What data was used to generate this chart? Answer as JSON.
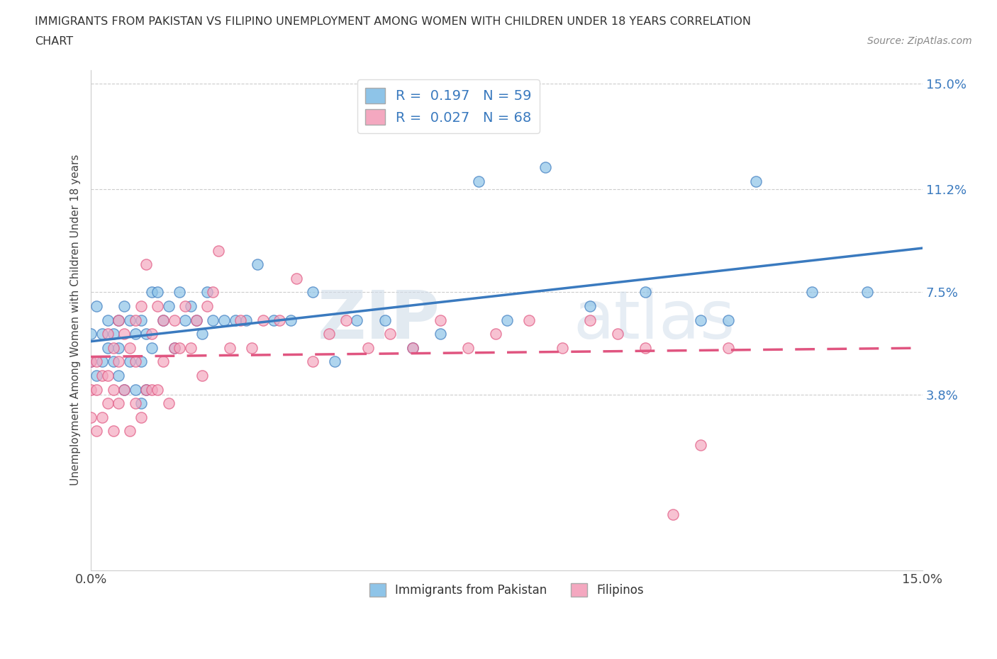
{
  "title_line1": "IMMIGRANTS FROM PAKISTAN VS FILIPINO UNEMPLOYMENT AMONG WOMEN WITH CHILDREN UNDER 18 YEARS CORRELATION",
  "title_line2": "CHART",
  "source_text": "Source: ZipAtlas.com",
  "ylabel": "Unemployment Among Women with Children Under 18 years",
  "xmin": 0.0,
  "xmax": 0.15,
  "ymin": -0.025,
  "ymax": 0.155,
  "yticks": [
    0.038,
    0.075,
    0.112,
    0.15
  ],
  "ytick_labels": [
    "3.8%",
    "7.5%",
    "11.2%",
    "15.0%"
  ],
  "xticks": [
    0.0,
    0.15
  ],
  "xtick_labels": [
    "0.0%",
    "15.0%"
  ],
  "r1": 0.197,
  "n1": 59,
  "r2": 0.027,
  "n2": 68,
  "color_pakistan": "#8ec4e8",
  "color_filipino": "#f4a8c0",
  "line_color_pakistan": "#3a7abf",
  "line_color_filipino": "#e05580",
  "watermark_zip": "ZIP",
  "watermark_atlas": "atlas",
  "pakistan_x": [
    0.0,
    0.0,
    0.001,
    0.001,
    0.002,
    0.002,
    0.003,
    0.003,
    0.004,
    0.004,
    0.005,
    0.005,
    0.005,
    0.006,
    0.006,
    0.007,
    0.007,
    0.008,
    0.008,
    0.009,
    0.009,
    0.009,
    0.01,
    0.01,
    0.011,
    0.011,
    0.012,
    0.013,
    0.014,
    0.015,
    0.016,
    0.017,
    0.018,
    0.019,
    0.02,
    0.021,
    0.022,
    0.024,
    0.026,
    0.028,
    0.03,
    0.033,
    0.036,
    0.04,
    0.044,
    0.048,
    0.053,
    0.058,
    0.063,
    0.07,
    0.075,
    0.082,
    0.09,
    0.1,
    0.11,
    0.115,
    0.12,
    0.13,
    0.14
  ],
  "pakistan_y": [
    0.05,
    0.06,
    0.045,
    0.07,
    0.05,
    0.06,
    0.055,
    0.065,
    0.05,
    0.06,
    0.045,
    0.055,
    0.065,
    0.04,
    0.07,
    0.05,
    0.065,
    0.04,
    0.06,
    0.035,
    0.05,
    0.065,
    0.04,
    0.06,
    0.055,
    0.075,
    0.075,
    0.065,
    0.07,
    0.055,
    0.075,
    0.065,
    0.07,
    0.065,
    0.06,
    0.075,
    0.065,
    0.065,
    0.065,
    0.065,
    0.085,
    0.065,
    0.065,
    0.075,
    0.05,
    0.065,
    0.065,
    0.055,
    0.06,
    0.115,
    0.065,
    0.12,
    0.07,
    0.075,
    0.065,
    0.065,
    0.115,
    0.075,
    0.075
  ],
  "filipino_x": [
    0.0,
    0.0,
    0.0,
    0.001,
    0.001,
    0.001,
    0.002,
    0.002,
    0.003,
    0.003,
    0.003,
    0.004,
    0.004,
    0.004,
    0.005,
    0.005,
    0.005,
    0.006,
    0.006,
    0.007,
    0.007,
    0.008,
    0.008,
    0.008,
    0.009,
    0.009,
    0.01,
    0.01,
    0.011,
    0.011,
    0.012,
    0.012,
    0.013,
    0.013,
    0.014,
    0.015,
    0.015,
    0.016,
    0.017,
    0.018,
    0.019,
    0.02,
    0.021,
    0.022,
    0.023,
    0.025,
    0.027,
    0.029,
    0.031,
    0.034,
    0.037,
    0.04,
    0.043,
    0.046,
    0.05,
    0.054,
    0.058,
    0.063,
    0.068,
    0.073,
    0.079,
    0.085,
    0.09,
    0.095,
    0.1,
    0.105,
    0.11,
    0.115
  ],
  "filipino_y": [
    0.03,
    0.04,
    0.05,
    0.025,
    0.04,
    0.05,
    0.03,
    0.045,
    0.035,
    0.045,
    0.06,
    0.025,
    0.04,
    0.055,
    0.035,
    0.05,
    0.065,
    0.04,
    0.06,
    0.025,
    0.055,
    0.035,
    0.05,
    0.065,
    0.03,
    0.07,
    0.04,
    0.085,
    0.04,
    0.06,
    0.04,
    0.07,
    0.05,
    0.065,
    0.035,
    0.055,
    0.065,
    0.055,
    0.07,
    0.055,
    0.065,
    0.045,
    0.07,
    0.075,
    0.09,
    0.055,
    0.065,
    0.055,
    0.065,
    0.065,
    0.08,
    0.05,
    0.06,
    0.065,
    0.055,
    0.06,
    0.055,
    0.065,
    0.055,
    0.06,
    0.065,
    0.055,
    0.065,
    0.06,
    0.055,
    -0.005,
    0.02,
    0.055
  ]
}
